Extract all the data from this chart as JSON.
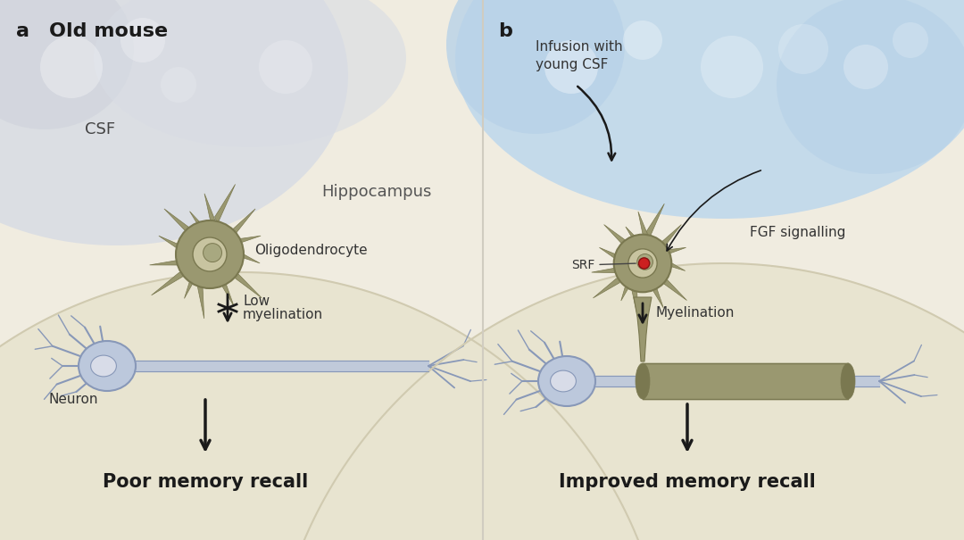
{
  "bg_color": "#f0ece0",
  "csf_left_color": "#d4d8e0",
  "csf_right_color": "#b8d4e8",
  "hippo_color": "#e8e4d0",
  "hippo_edge_color": "#d0cab0",
  "oligo_body": "#9a9870",
  "oligo_dark": "#7a7850",
  "oligo_nucleus": "#c8c4a0",
  "neuron_fill": "#bcc8dc",
  "neuron_outline": "#8898b8",
  "neuron_nucleus": "#d8dce8",
  "myelin_fill": "#9a9870",
  "myelin_dark": "#7a7850",
  "arrow_color": "#1a1a1a",
  "text_dark": "#1a1a1a",
  "text_mid": "#333333",
  "panel_a_label": "a",
  "panel_a_title": "Old mouse",
  "panel_b_label": "b",
  "csf_text": "CSF",
  "hippo_text": "Hippocampus",
  "oligo_text": "Oligodendrocyte",
  "neuron_text": "Neuron",
  "low_myelin_line1": "Low",
  "low_myelin_line2": "myelination",
  "poor_memory": "Poor memory recall",
  "infusion_text": "Infusion with\nyoung CSF",
  "fgf_text": "FGF signalling",
  "srf_text": "SRF",
  "myelin_text": "Myelination",
  "improved_memory": "Improved memory recall"
}
